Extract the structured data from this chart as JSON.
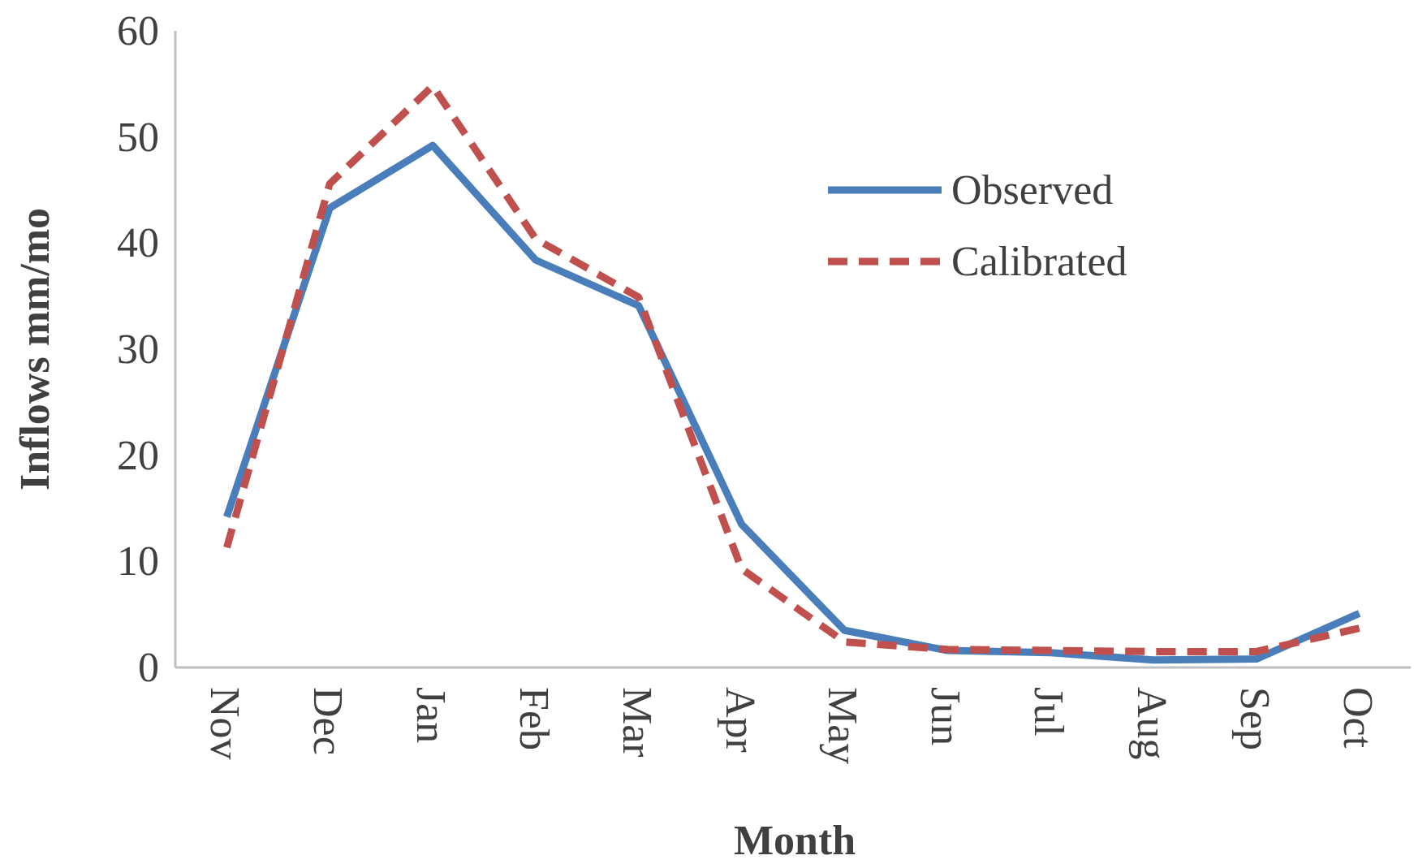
{
  "chart_data": {
    "type": "line",
    "xlabel": "Month",
    "ylabel": "Inflows mm/mo",
    "categories": [
      "Nov",
      "Dec",
      "Jan",
      "Feb",
      "Mar",
      "Apr",
      "May",
      "Jun",
      "Jul",
      "Aug",
      "Sep",
      "Oct"
    ],
    "ylim": [
      0,
      60
    ],
    "yticks": [
      0,
      10,
      20,
      30,
      40,
      50,
      60
    ],
    "legend": "top right",
    "grid": false,
    "series": [
      {
        "name": "Observed",
        "color": "#4a7ebb",
        "line_style": "solid",
        "values": [
          14.2,
          43.3,
          49.2,
          38.4,
          34.1,
          13.5,
          3.5,
          1.6,
          1.4,
          0.7,
          0.8,
          5.1
        ]
      },
      {
        "name": "Calibrated",
        "color": "#c0504d",
        "line_style": "dashed",
        "values": [
          11.3,
          45.6,
          54.8,
          40.4,
          34.9,
          9.3,
          2.4,
          1.7,
          1.6,
          1.5,
          1.5,
          3.7
        ]
      }
    ]
  }
}
